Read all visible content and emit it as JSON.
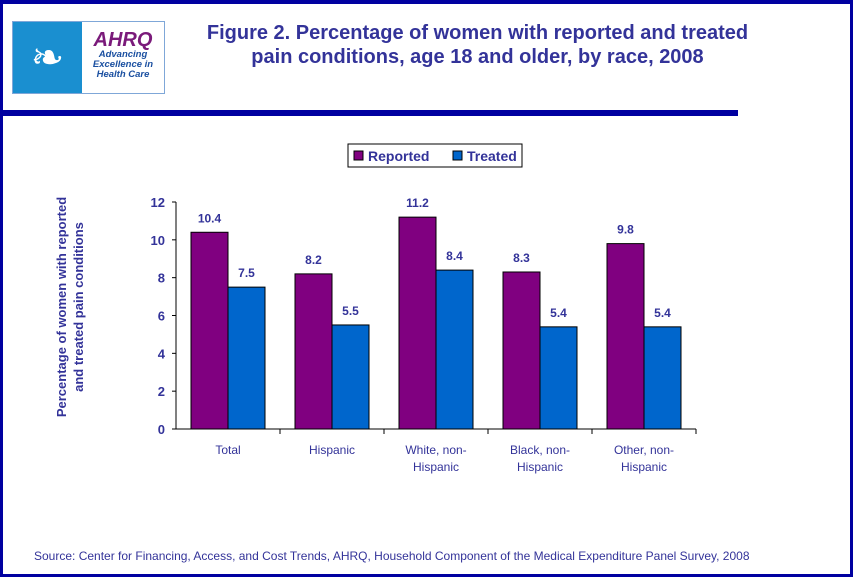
{
  "logo": {
    "hhs_icon": "hhs-eagle-icon",
    "brand": "AHRQ",
    "tagline": [
      "Advancing",
      "Excellence in",
      "Health Care"
    ]
  },
  "source": "Source: Center for Financing, Access, and Cost Trends, AHRQ, Household Component of the Medical Expenditure Panel Survey,  2008",
  "chart_data": {
    "type": "bar",
    "title": "Figure 2. Percentage of women with reported and treated pain conditions, age 18 and older, by race, 2008",
    "categories": [
      [
        "Total"
      ],
      [
        "Hispanic"
      ],
      [
        "White, non-",
        "Hispanic"
      ],
      [
        "Black, non-",
        "Hispanic"
      ],
      [
        "Other, non-",
        "Hispanic"
      ]
    ],
    "series": [
      {
        "name": "Reported",
        "color": "#800080",
        "values": [
          10.4,
          8.2,
          11.2,
          8.3,
          9.8
        ]
      },
      {
        "name": "Treated",
        "color": "#0066cc",
        "values": [
          7.5,
          5.5,
          8.4,
          5.4,
          5.4
        ]
      }
    ],
    "xlabel": "",
    "ylabel": [
      "Percentage of women with reported",
      "and treated pain conditions"
    ],
    "ylim": [
      0,
      12
    ],
    "yticks": [
      0,
      2,
      4,
      6,
      8,
      10,
      12
    ],
    "legend": "top-center",
    "grid": false
  }
}
